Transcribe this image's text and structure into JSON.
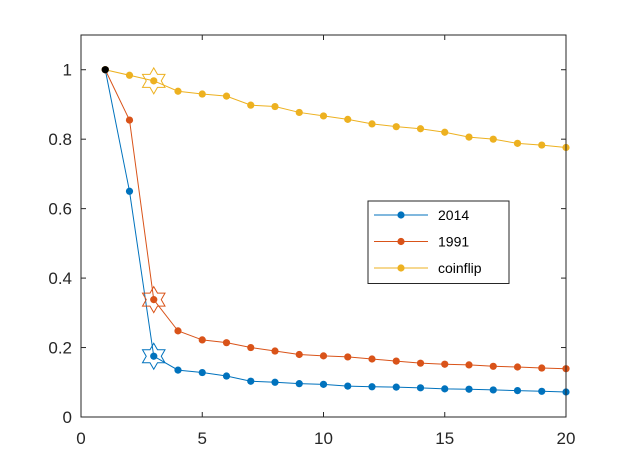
{
  "chart_data": {
    "type": "line",
    "title": "",
    "xlabel": "",
    "ylabel": "",
    "xlim": [
      0,
      20
    ],
    "ylim": [
      0,
      1.1
    ],
    "xticks": [
      0,
      5,
      10,
      15,
      20
    ],
    "yticks": [
      0,
      0.2,
      0.4,
      0.6,
      0.8,
      1
    ],
    "xtick_labels": [
      "0",
      "5",
      "10",
      "15",
      "20"
    ],
    "ytick_labels": [
      "0",
      "0.2",
      "0.4",
      "0.6",
      "0.8",
      "1"
    ],
    "grid": false,
    "legend_position": "center-right",
    "x": [
      1,
      2,
      3,
      4,
      5,
      6,
      7,
      8,
      9,
      10,
      11,
      12,
      13,
      14,
      15,
      16,
      17,
      18,
      19,
      20
    ],
    "series": [
      {
        "name": "2014",
        "color": "#0072BD",
        "values": [
          1.0,
          0.65,
          0.175,
          0.135,
          0.128,
          0.118,
          0.103,
          0.1,
          0.096,
          0.094,
          0.089,
          0.087,
          0.086,
          0.084,
          0.081,
          0.08,
          0.078,
          0.076,
          0.074,
          0.072
        ],
        "highlight_x": 3
      },
      {
        "name": "1991",
        "color": "#D95319",
        "values": [
          1.0,
          0.855,
          0.338,
          0.248,
          0.222,
          0.214,
          0.2,
          0.19,
          0.18,
          0.176,
          0.173,
          0.167,
          0.161,
          0.155,
          0.152,
          0.15,
          0.146,
          0.144,
          0.141,
          0.139
        ],
        "highlight_x": 3
      },
      {
        "name": "coinflip",
        "color": "#EDB120",
        "values": [
          1.0,
          0.984,
          0.968,
          0.938,
          0.93,
          0.924,
          0.898,
          0.894,
          0.877,
          0.867,
          0.857,
          0.844,
          0.836,
          0.83,
          0.82,
          0.806,
          0.8,
          0.788,
          0.783,
          0.776
        ],
        "highlight_x": 3
      }
    ],
    "start_point": {
      "x": 1,
      "y": 1.0,
      "color": "#000000"
    }
  }
}
